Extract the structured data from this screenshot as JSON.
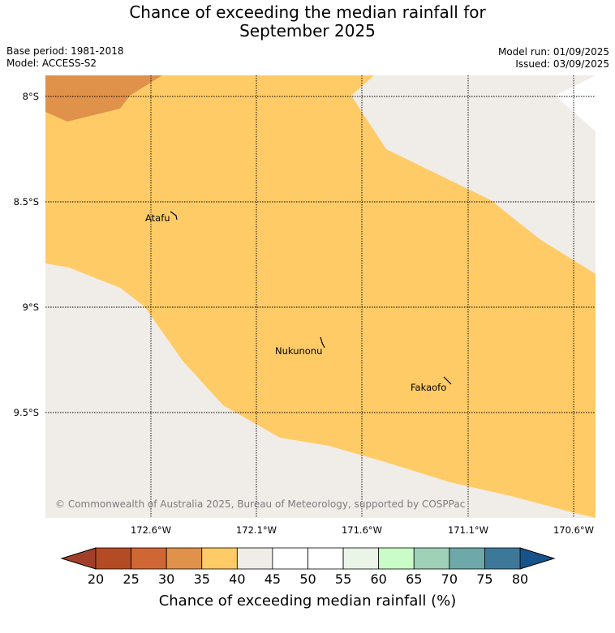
{
  "title": {
    "line1": "Chance of exceeding the median rainfall for",
    "line2": "September 2025"
  },
  "meta": {
    "base_period": "Base period: 1981-2018",
    "model": "Model: ACCESS-S2",
    "model_run": "Model run: 01/09/2025",
    "issued": "Issued: 03/09/2025"
  },
  "map": {
    "latitude_labels": [
      "8°S",
      "8.5°S",
      "9°S",
      "9.5°S"
    ],
    "longitude_labels": [
      "172.6°W",
      "172.1°W",
      "171.6°W",
      "171.1°W",
      "170.6°W"
    ],
    "places": [
      {
        "name": "Atafu",
        "lat": -8.56,
        "lon": -172.48
      },
      {
        "name": "Nukunonu",
        "lat": -9.18,
        "lon": -171.83
      },
      {
        "name": "Fakaofo",
        "lat": -9.37,
        "lon": -171.22
      }
    ],
    "zones": [
      {
        "range": "25-30",
        "color": "#e0914a"
      },
      {
        "range": "35-40",
        "color": "#fecb66"
      },
      {
        "range": "40-45",
        "color": "#f0ece7"
      }
    ],
    "copyright": "© Commonwealth of Australia 2025, Bureau of Meteorology, supported by COSPPac"
  },
  "colorbar": {
    "title": "Chance of exceeding median rainfall (%)",
    "ticks": [
      "20",
      "25",
      "30",
      "35",
      "40",
      "45",
      "50",
      "55",
      "60",
      "65",
      "70",
      "75",
      "80"
    ],
    "under_color": "#a0402a",
    "over_color": "#16538a",
    "colors": [
      "#b44b25",
      "#cf6633",
      "#e0914a",
      "#fecb66",
      "#f0ece7",
      "#ffffff",
      "#ffffff",
      "#eaf5e8",
      "#c9fcc6",
      "#9ed1b8",
      "#6ea8a8",
      "#3e7899"
    ]
  }
}
